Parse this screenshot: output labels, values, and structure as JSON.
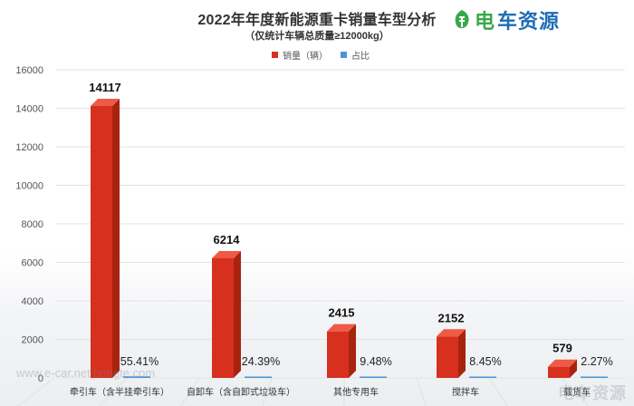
{
  "title": "2022年年度新能源重卡销量车型分析",
  "subtitle": "（仅统计车辆总质量≥12000kg）",
  "logo": {
    "text_1": "电",
    "text_2": "车资源",
    "color_green": "#3aa84a",
    "color_blue": "#1f6db5"
  },
  "legend": [
    {
      "label": "销量（辆）",
      "color": "#d7301f"
    },
    {
      "label": "占比",
      "color": "#4f93d8"
    }
  ],
  "watermark_left": "www.e-car.net  hongte.com",
  "watermark_right": "电车资源",
  "colors": {
    "bar_front": "#d7301f",
    "bar_side": "#a8230f",
    "bar_top": "#ee5a45",
    "share_line": "#4f93d8"
  },
  "chart_data": {
    "type": "bar",
    "categories": [
      "牵引车（含半挂牵引车）",
      "自卸车（含自卸式垃圾车）",
      "其他专用车",
      "搅拌车",
      "载货车"
    ],
    "series": [
      {
        "name": "销量（辆）",
        "values": [
          14117,
          6214,
          2415,
          2152,
          579
        ]
      },
      {
        "name": "占比",
        "values": [
          55.41,
          24.39,
          9.48,
          8.45,
          2.27
        ]
      }
    ],
    "value_labels": [
      "14117",
      "6214",
      "2415",
      "2152",
      "579"
    ],
    "share_labels": [
      "55.41%",
      "24.39%",
      "9.48%",
      "8.45%",
      "2.27%"
    ],
    "ylim": [
      0,
      16000
    ],
    "yticks": [
      0,
      2000,
      4000,
      6000,
      8000,
      10000,
      12000,
      14000,
      16000
    ],
    "ytick_labels": [
      "0",
      "2000",
      "4000",
      "6000",
      "8000",
      "10000",
      "12000",
      "14000",
      "16000"
    ],
    "grid": true,
    "legend_position": "top-center"
  }
}
